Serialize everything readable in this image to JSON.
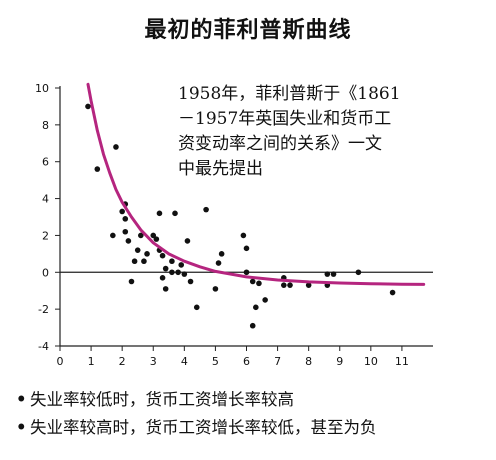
{
  "title": "最初的菲利普斯曲线",
  "annotation_lines": [
    "1958年，菲利普斯于《1861",
    "－1957年英国失业和货币工",
    "资变动率之间的关系》一文",
    "中最先提出"
  ],
  "bullets": [
    "失业率较低时，货币工资增长率较高",
    "失业率较高时，货币工资增长率较低，甚至为负"
  ],
  "colors": {
    "curve": "#b5257f",
    "points": "#111111",
    "axis": "#222222"
  },
  "chart_data": {
    "type": "scatter",
    "title": "",
    "xlabel": "",
    "ylabel": "",
    "xlim": [
      0,
      12
    ],
    "ylim": [
      -4,
      10
    ],
    "grid": false,
    "x_ticks": [
      "0",
      "1",
      "2",
      "3",
      "4",
      "5",
      "6",
      "7",
      "8",
      "9",
      "10",
      "11"
    ],
    "y_ticks": [
      "-4",
      "-2",
      "0",
      "2",
      "4",
      "6",
      "8",
      "10"
    ],
    "points": [
      [
        0.9,
        9.0
      ],
      [
        1.2,
        5.6
      ],
      [
        1.8,
        6.8
      ],
      [
        1.7,
        2.0
      ],
      [
        2.0,
        3.3
      ],
      [
        2.1,
        3.7
      ],
      [
        2.1,
        2.9
      ],
      [
        2.1,
        2.2
      ],
      [
        2.2,
        1.7
      ],
      [
        2.3,
        -0.5
      ],
      [
        2.4,
        0.6
      ],
      [
        2.5,
        1.2
      ],
      [
        2.6,
        2.0
      ],
      [
        2.7,
        0.6
      ],
      [
        2.8,
        1.0
      ],
      [
        3.0,
        2.0
      ],
      [
        3.1,
        1.8
      ],
      [
        3.2,
        1.2
      ],
      [
        3.2,
        3.2
      ],
      [
        3.3,
        0.9
      ],
      [
        3.3,
        -0.3
      ],
      [
        3.4,
        -0.9
      ],
      [
        3.4,
        0.2
      ],
      [
        3.6,
        0.6
      ],
      [
        3.6,
        0.0
      ],
      [
        3.7,
        3.2
      ],
      [
        3.8,
        0.0
      ],
      [
        3.9,
        0.4
      ],
      [
        4.0,
        -0.1
      ],
      [
        4.1,
        1.7
      ],
      [
        4.2,
        -0.5
      ],
      [
        4.4,
        -1.9
      ],
      [
        4.7,
        3.4
      ],
      [
        5.0,
        -0.9
      ],
      [
        5.1,
        0.5
      ],
      [
        5.2,
        1.0
      ],
      [
        5.9,
        2.0
      ],
      [
        6.0,
        1.3
      ],
      [
        6.0,
        0.0
      ],
      [
        6.2,
        -0.5
      ],
      [
        6.2,
        -2.9
      ],
      [
        6.3,
        -1.9
      ],
      [
        6.4,
        -0.6
      ],
      [
        6.6,
        -1.5
      ],
      [
        7.2,
        -0.3
      ],
      [
        7.2,
        -0.7
      ],
      [
        7.4,
        -0.7
      ],
      [
        8.0,
        -0.7
      ],
      [
        8.6,
        -0.7
      ],
      [
        8.6,
        -0.1
      ],
      [
        8.8,
        -0.1
      ],
      [
        9.6,
        0.0
      ],
      [
        10.7,
        -1.1
      ]
    ],
    "curve": {
      "name": "",
      "x": [
        0.9,
        1.0,
        1.2,
        1.4,
        1.6,
        1.8,
        2.0,
        2.3,
        2.6,
        3.0,
        3.5,
        4.0,
        4.5,
        5.0,
        5.5,
        6.0,
        7.0,
        8.0,
        9.0,
        10.0,
        11.0,
        11.7
      ],
      "y": [
        10.2,
        9.3,
        7.7,
        6.4,
        5.4,
        4.5,
        3.8,
        3.0,
        2.3,
        1.6,
        1.0,
        0.6,
        0.3,
        0.05,
        -0.1,
        -0.25,
        -0.42,
        -0.52,
        -0.58,
        -0.62,
        -0.65,
        -0.66
      ]
    }
  }
}
